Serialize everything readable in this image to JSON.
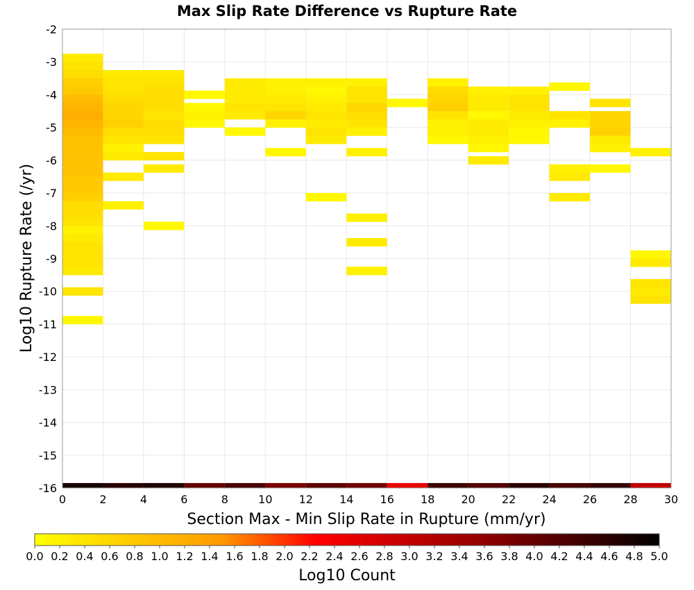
{
  "chart_data": {
    "type": "heatmap",
    "title": "Max Slip Rate Difference vs Rupture Rate",
    "xlabel": "Section Max - Min Slip Rate in Rupture (mm/yr)",
    "ylabel": "Log10 Rupture Rate (/yr)",
    "xlim": [
      0,
      30
    ],
    "ylim": [
      -16,
      -2
    ],
    "x_ticks": [
      "0",
      "2",
      "4",
      "6",
      "8",
      "10",
      "12",
      "14",
      "16",
      "18",
      "20",
      "22",
      "24",
      "26",
      "28",
      "30"
    ],
    "y_ticks": [
      "-2",
      "-3",
      "-4",
      "-5",
      "-6",
      "-7",
      "-8",
      "-9",
      "-10",
      "-11",
      "-12",
      "-13",
      "-14",
      "-15",
      "-16"
    ],
    "x_bin_width": 2,
    "y_bin_width": 0.25,
    "grid": true,
    "colorbar": {
      "label": "Log10 Count",
      "range": [
        0,
        5
      ],
      "ticks": [
        "0.0",
        "0.2",
        "0.4",
        "0.6",
        "0.8",
        "1.0",
        "1.2",
        "1.4",
        "1.6",
        "1.8",
        "2.0",
        "2.2",
        "2.4",
        "2.6",
        "2.8",
        "3.0",
        "3.2",
        "3.4",
        "3.6",
        "3.8",
        "4.0",
        "4.2",
        "4.4",
        "4.6",
        "4.8",
        "5.0"
      ],
      "colors": [
        "#ffff00",
        "#ff9900",
        "#ff0000",
        "#330000"
      ]
    },
    "cells": [
      {
        "x": 1,
        "y": -2.875,
        "v": 0.3
      },
      {
        "x": 1,
        "y": -3.125,
        "v": 0.4
      },
      {
        "x": 1,
        "y": -3.375,
        "v": 0.5
      },
      {
        "x": 1,
        "y": -3.625,
        "v": 0.7
      },
      {
        "x": 1,
        "y": -3.875,
        "v": 0.8
      },
      {
        "x": 1,
        "y": -4.125,
        "v": 1.0
      },
      {
        "x": 1,
        "y": -4.375,
        "v": 1.1
      },
      {
        "x": 1,
        "y": -4.625,
        "v": 1.2
      },
      {
        "x": 1,
        "y": -4.875,
        "v": 1.1
      },
      {
        "x": 1,
        "y": -5.125,
        "v": 1.0
      },
      {
        "x": 1,
        "y": -5.375,
        "v": 0.9
      },
      {
        "x": 1,
        "y": -5.625,
        "v": 0.9
      },
      {
        "x": 1,
        "y": -5.875,
        "v": 0.9
      },
      {
        "x": 1,
        "y": -6.125,
        "v": 0.9
      },
      {
        "x": 1,
        "y": -6.375,
        "v": 0.9
      },
      {
        "x": 1,
        "y": -6.625,
        "v": 0.8
      },
      {
        "x": 1,
        "y": -6.875,
        "v": 0.8
      },
      {
        "x": 1,
        "y": -7.125,
        "v": 0.7
      },
      {
        "x": 1,
        "y": -7.375,
        "v": 0.5
      },
      {
        "x": 1,
        "y": -7.625,
        "v": 0.5
      },
      {
        "x": 1,
        "y": -7.875,
        "v": 0.4
      },
      {
        "x": 1,
        "y": -8.125,
        "v": 0.2
      },
      {
        "x": 1,
        "y": -8.375,
        "v": 0.3
      },
      {
        "x": 1,
        "y": -8.625,
        "v": 0.4
      },
      {
        "x": 1,
        "y": -8.875,
        "v": 0.4
      },
      {
        "x": 1,
        "y": -9.125,
        "v": 0.4
      },
      {
        "x": 1,
        "y": -9.375,
        "v": 0.3
      },
      {
        "x": 1,
        "y": -10.0,
        "v": 0.4
      },
      {
        "x": 1,
        "y": -10.875,
        "v": 0.1
      },
      {
        "x": 3,
        "y": -3.375,
        "v": 0.3
      },
      {
        "x": 3,
        "y": -3.625,
        "v": 0.4
      },
      {
        "x": 3,
        "y": -3.875,
        "v": 0.4
      },
      {
        "x": 3,
        "y": -4.125,
        "v": 0.5
      },
      {
        "x": 3,
        "y": -4.375,
        "v": 0.6
      },
      {
        "x": 3,
        "y": -4.625,
        "v": 0.6
      },
      {
        "x": 3,
        "y": -4.875,
        "v": 0.7
      },
      {
        "x": 3,
        "y": -5.125,
        "v": 0.5
      },
      {
        "x": 3,
        "y": -5.375,
        "v": 0.4
      },
      {
        "x": 3,
        "y": -5.625,
        "v": 0.2
      },
      {
        "x": 3,
        "y": -5.875,
        "v": 0.3
      },
      {
        "x": 3,
        "y": -6.5,
        "v": 0.3
      },
      {
        "x": 3,
        "y": -7.375,
        "v": 0.2
      },
      {
        "x": 5,
        "y": -3.375,
        "v": 0.3
      },
      {
        "x": 5,
        "y": -3.625,
        "v": 0.4
      },
      {
        "x": 5,
        "y": -3.875,
        "v": 0.5
      },
      {
        "x": 5,
        "y": -4.125,
        "v": 0.5
      },
      {
        "x": 5,
        "y": -4.375,
        "v": 0.5
      },
      {
        "x": 5,
        "y": -4.625,
        "v": 0.4
      },
      {
        "x": 5,
        "y": -4.875,
        "v": 0.5
      },
      {
        "x": 5,
        "y": -5.125,
        "v": 0.5
      },
      {
        "x": 5,
        "y": -5.375,
        "v": 0.4
      },
      {
        "x": 5,
        "y": -5.875,
        "v": 0.4
      },
      {
        "x": 5,
        "y": -6.25,
        "v": 0.3
      },
      {
        "x": 5,
        "y": -8.0,
        "v": 0.1
      },
      {
        "x": 7,
        "y": -4.0,
        "v": 0.1
      },
      {
        "x": 7,
        "y": -4.375,
        "v": 0.1
      },
      {
        "x": 7,
        "y": -4.625,
        "v": 0.2
      },
      {
        "x": 7,
        "y": -4.875,
        "v": 0.1
      },
      {
        "x": 9,
        "y": -3.625,
        "v": 0.3
      },
      {
        "x": 9,
        "y": -3.875,
        "v": 0.3
      },
      {
        "x": 9,
        "y": -4.125,
        "v": 0.3
      },
      {
        "x": 9,
        "y": -4.375,
        "v": 0.4
      },
      {
        "x": 9,
        "y": -4.625,
        "v": 0.3
      },
      {
        "x": 9,
        "y": -5.125,
        "v": 0.1
      },
      {
        "x": 11,
        "y": -3.625,
        "v": 0.2
      },
      {
        "x": 11,
        "y": -3.875,
        "v": 0.2
      },
      {
        "x": 11,
        "y": -4.125,
        "v": 0.3
      },
      {
        "x": 11,
        "y": -4.375,
        "v": 0.4
      },
      {
        "x": 11,
        "y": -4.625,
        "v": 0.6
      },
      {
        "x": 11,
        "y": -4.875,
        "v": 0.2
      },
      {
        "x": 11,
        "y": -5.75,
        "v": 0.1
      },
      {
        "x": 13,
        "y": -3.625,
        "v": 0.2
      },
      {
        "x": 13,
        "y": -3.875,
        "v": 0.1
      },
      {
        "x": 13,
        "y": -4.125,
        "v": 0.2
      },
      {
        "x": 13,
        "y": -4.375,
        "v": 0.3
      },
      {
        "x": 13,
        "y": -4.625,
        "v": 0.4
      },
      {
        "x": 13,
        "y": -4.875,
        "v": 0.3
      },
      {
        "x": 13,
        "y": -5.125,
        "v": 0.4
      },
      {
        "x": 13,
        "y": -5.375,
        "v": 0.3
      },
      {
        "x": 13,
        "y": -7.125,
        "v": 0.1
      },
      {
        "x": 15,
        "y": -3.625,
        "v": 0.2
      },
      {
        "x": 15,
        "y": -3.875,
        "v": 0.4
      },
      {
        "x": 15,
        "y": -4.125,
        "v": 0.4
      },
      {
        "x": 15,
        "y": -4.375,
        "v": 0.6
      },
      {
        "x": 15,
        "y": -4.625,
        "v": 0.5
      },
      {
        "x": 15,
        "y": -4.875,
        "v": 0.4
      },
      {
        "x": 15,
        "y": -5.125,
        "v": 0.2
      },
      {
        "x": 15,
        "y": -5.75,
        "v": 0.2
      },
      {
        "x": 15,
        "y": -7.75,
        "v": 0.2
      },
      {
        "x": 15,
        "y": -8.5,
        "v": 0.3
      },
      {
        "x": 15,
        "y": -9.375,
        "v": 0.2
      },
      {
        "x": 17,
        "y": -4.25,
        "v": 0.1
      },
      {
        "x": 19,
        "y": -3.625,
        "v": 0.2
      },
      {
        "x": 19,
        "y": -3.875,
        "v": 0.5
      },
      {
        "x": 19,
        "y": -4.125,
        "v": 0.6
      },
      {
        "x": 19,
        "y": -4.375,
        "v": 0.7
      },
      {
        "x": 19,
        "y": -4.625,
        "v": 0.4
      },
      {
        "x": 19,
        "y": -4.875,
        "v": 0.2
      },
      {
        "x": 19,
        "y": -5.125,
        "v": 0.2
      },
      {
        "x": 19,
        "y": -5.375,
        "v": 0.1
      },
      {
        "x": 21,
        "y": -3.875,
        "v": 0.2
      },
      {
        "x": 21,
        "y": -4.125,
        "v": 0.3
      },
      {
        "x": 21,
        "y": -4.375,
        "v": 0.3
      },
      {
        "x": 21,
        "y": -4.625,
        "v": 0.1
      },
      {
        "x": 21,
        "y": -4.875,
        "v": 0.3
      },
      {
        "x": 21,
        "y": -5.125,
        "v": 0.3
      },
      {
        "x": 21,
        "y": -5.375,
        "v": 0.2
      },
      {
        "x": 21,
        "y": -5.625,
        "v": 0.1
      },
      {
        "x": 21,
        "y": -6.0,
        "v": 0.3
      },
      {
        "x": 23,
        "y": -3.875,
        "v": 0.2
      },
      {
        "x": 23,
        "y": -4.125,
        "v": 0.4
      },
      {
        "x": 23,
        "y": -4.375,
        "v": 0.4
      },
      {
        "x": 23,
        "y": -4.625,
        "v": 0.3
      },
      {
        "x": 23,
        "y": -4.875,
        "v": 0.2
      },
      {
        "x": 23,
        "y": -5.125,
        "v": 0.1
      },
      {
        "x": 23,
        "y": -5.375,
        "v": 0.1
      },
      {
        "x": 25,
        "y": -3.75,
        "v": 0.1
      },
      {
        "x": 25,
        "y": -4.625,
        "v": 0.4
      },
      {
        "x": 25,
        "y": -4.875,
        "v": 0.2
      },
      {
        "x": 25,
        "y": -6.25,
        "v": 0.2
      },
      {
        "x": 25,
        "y": -6.5,
        "v": 0.3
      },
      {
        "x": 25,
        "y": -7.125,
        "v": 0.3
      },
      {
        "x": 27,
        "y": -4.25,
        "v": 0.4
      },
      {
        "x": 27,
        "y": -4.625,
        "v": 0.6
      },
      {
        "x": 27,
        "y": -4.875,
        "v": 0.6
      },
      {
        "x": 27,
        "y": -5.125,
        "v": 0.7
      },
      {
        "x": 27,
        "y": -5.375,
        "v": 0.3
      },
      {
        "x": 27,
        "y": -5.625,
        "v": 0.2
      },
      {
        "x": 27,
        "y": -6.25,
        "v": 0.1
      },
      {
        "x": 29,
        "y": -5.75,
        "v": 0.2
      },
      {
        "x": 29,
        "y": -8.875,
        "v": 0.1
      },
      {
        "x": 29,
        "y": -9.125,
        "v": 0.3
      },
      {
        "x": 29,
        "y": -9.75,
        "v": 0.4
      },
      {
        "x": 29,
        "y": -10.0,
        "v": 0.3
      },
      {
        "x": 29,
        "y": -10.25,
        "v": 0.4
      }
    ],
    "bottom_strip": [
      {
        "x": 1,
        "v": 4.8
      },
      {
        "x": 3,
        "v": 4.6
      },
      {
        "x": 5,
        "v": 4.7
      },
      {
        "x": 7,
        "v": 4.0
      },
      {
        "x": 9,
        "v": 4.3
      },
      {
        "x": 11,
        "v": 3.8
      },
      {
        "x": 13,
        "v": 4.1
      },
      {
        "x": 15,
        "v": 3.9
      },
      {
        "x": 17,
        "v": 2.5
      },
      {
        "x": 19,
        "v": 4.4
      },
      {
        "x": 21,
        "v": 4.2
      },
      {
        "x": 23,
        "v": 4.6
      },
      {
        "x": 25,
        "v": 4.3
      },
      {
        "x": 27,
        "v": 4.5
      },
      {
        "x": 29,
        "v": 3.0
      }
    ]
  }
}
